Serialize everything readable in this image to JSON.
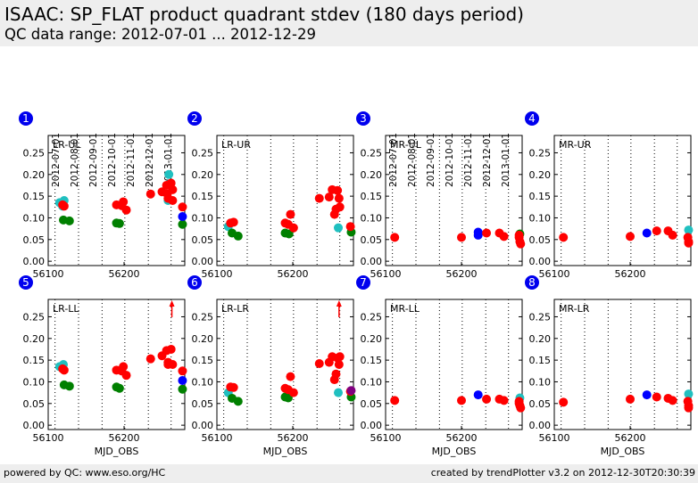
{
  "header": {
    "title": "ISAAC: SP_FLAT product quadrant stdev (180 days period)",
    "subtitle": "QC data range: 2012-07-01 ... 2012-12-29"
  },
  "footer": {
    "left": "powered by QC: www.eso.org/HC",
    "right": "created by trendPlotter v3.2 on 2012-12-30T20:30:39"
  },
  "date_axis": {
    "labels": [
      "2012-07-01",
      "2012-08-01",
      "2012-09-01",
      "2012-10-01",
      "2012-11-01",
      "2012-12-01",
      "2013-01-01"
    ],
    "mjd": [
      56109,
      56140,
      56171,
      56201,
      56232,
      56262,
      56293
    ],
    "shown_above_panels": [
      1,
      3
    ]
  },
  "colors": {
    "red": "#ff0000",
    "green": "#008000",
    "cyan": "#20c0c0",
    "blue": "#0000ff",
    "purple": "#800080",
    "badge": "#0000ee"
  },
  "chart_data": [
    {
      "type": "scatter",
      "panel": "1",
      "name": "LR-UL",
      "xlim": [
        56100,
        56280
      ],
      "ylim": [
        -0.01,
        0.29
      ],
      "xticks": [
        56100,
        56200
      ],
      "xlabel": "",
      "yticks": [
        0.0,
        0.05,
        0.1,
        0.15,
        0.2,
        0.25
      ],
      "ytick_labels": [
        "0.00",
        "0.05",
        "0.10",
        "0.15",
        "0.20",
        "0.25"
      ],
      "series": [
        {
          "color": "cyan",
          "x": [
            56115,
            56121,
            56119,
            56259,
            56258
          ],
          "y": [
            0.135,
            0.14,
            0.127,
            0.2,
            0.14
          ]
        },
        {
          "color": "green",
          "x": [
            56120,
            56128,
            56190,
            56194,
            56277
          ],
          "y": [
            0.095,
            0.093,
            0.088,
            0.087,
            0.085
          ]
        },
        {
          "color": "red",
          "x": [
            56119,
            56121,
            56190,
            56197,
            56199,
            56203,
            56235,
            56250,
            56256,
            56257,
            56262,
            56258,
            56264,
            56264,
            56277
          ],
          "y": [
            0.13,
            0.127,
            0.13,
            0.128,
            0.137,
            0.118,
            0.155,
            0.16,
            0.175,
            0.155,
            0.18,
            0.145,
            0.14,
            0.165,
            0.125
          ]
        },
        {
          "color": "blue",
          "x": [
            56277
          ],
          "y": [
            0.103
          ]
        }
      ]
    },
    {
      "type": "scatter",
      "panel": "2",
      "name": "LR-UR",
      "xlim": [
        56100,
        56280
      ],
      "ylim": [
        -0.01,
        0.29
      ],
      "xticks": [
        56100,
        56200
      ],
      "xlabel": "",
      "yticks": [
        0.0,
        0.05,
        0.1,
        0.15,
        0.2,
        0.25
      ],
      "ytick_labels": [
        "0.00",
        "0.05",
        "0.10",
        "0.15",
        "0.20",
        "0.25"
      ],
      "series": [
        {
          "color": "cyan",
          "x": [
            56115,
            56260
          ],
          "y": [
            0.08,
            0.077
          ]
        },
        {
          "color": "green",
          "x": [
            56120,
            56128,
            56190,
            56195,
            56277
          ],
          "y": [
            0.065,
            0.058,
            0.065,
            0.063,
            0.067
          ]
        },
        {
          "color": "red",
          "x": [
            56118,
            56122,
            56190,
            56194,
            56197,
            56201,
            56235,
            56248,
            56252,
            56255,
            56257,
            56259,
            56262,
            56261,
            56276
          ],
          "y": [
            0.088,
            0.09,
            0.088,
            0.085,
            0.108,
            0.077,
            0.145,
            0.148,
            0.165,
            0.108,
            0.12,
            0.163,
            0.125,
            0.145,
            0.08
          ]
        }
      ]
    },
    {
      "type": "scatter",
      "panel": "3",
      "name": "MR-UL",
      "xlim": [
        56100,
        56280
      ],
      "ylim": [
        -0.01,
        0.29
      ],
      "xticks": [
        56100,
        56200
      ],
      "xlabel": "",
      "yticks": [
        0.0,
        0.05,
        0.1,
        0.15,
        0.2,
        0.25
      ],
      "ytick_labels": [
        "0.00",
        "0.05",
        "0.10",
        "0.15",
        "0.20",
        "0.25"
      ],
      "series": [
        {
          "color": "green",
          "x": [
            56277
          ],
          "y": [
            0.063
          ]
        },
        {
          "color": "blue",
          "x": [
            56222,
            56222
          ],
          "y": [
            0.067,
            0.06
          ]
        },
        {
          "color": "red",
          "x": [
            56112,
            56200,
            56233,
            56250,
            56256,
            56276,
            56277,
            56278,
            56276
          ],
          "y": [
            0.055,
            0.055,
            0.065,
            0.065,
            0.057,
            0.055,
            0.045,
            0.04,
            0.06
          ]
        }
      ]
    },
    {
      "type": "scatter",
      "panel": "4",
      "name": "MR-UR",
      "xlim": [
        56100,
        56280
      ],
      "ylim": [
        -0.01,
        0.29
      ],
      "xticks": [
        56100,
        56200
      ],
      "xlabel": "",
      "yticks": [
        0.0,
        0.05,
        0.1,
        0.15,
        0.2,
        0.25
      ],
      "ytick_labels": [
        "0.00",
        "0.05",
        "0.10",
        "0.15",
        "0.20",
        "0.25"
      ],
      "series": [
        {
          "color": "cyan",
          "x": [
            56277
          ],
          "y": [
            0.072
          ]
        },
        {
          "color": "blue",
          "x": [
            56222
          ],
          "y": [
            0.065
          ]
        },
        {
          "color": "red",
          "x": [
            56112,
            56200,
            56235,
            56250,
            56256,
            56276,
            56277,
            56277
          ],
          "y": [
            0.055,
            0.057,
            0.07,
            0.07,
            0.06,
            0.055,
            0.045,
            0.042
          ]
        }
      ]
    },
    {
      "type": "scatter",
      "panel": "5",
      "name": "LR-LL",
      "xlim": [
        56100,
        56280
      ],
      "ylim": [
        -0.01,
        0.29
      ],
      "xticks": [
        56100,
        56200
      ],
      "xlabel": "MJD_OBS",
      "yticks": [
        0.0,
        0.05,
        0.1,
        0.15,
        0.2,
        0.25
      ],
      "ytick_labels": [
        "0.00",
        "0.05",
        "0.10",
        "0.15",
        "0.20",
        "0.25"
      ],
      "arrow_x": 56263,
      "series": [
        {
          "color": "cyan",
          "x": [
            56115,
            56120
          ],
          "y": [
            0.135,
            0.14
          ]
        },
        {
          "color": "green",
          "x": [
            56121,
            56128,
            56190,
            56194,
            56277
          ],
          "y": [
            0.093,
            0.09,
            0.088,
            0.085,
            0.083
          ]
        },
        {
          "color": "red",
          "x": [
            56119,
            56121,
            56190,
            56197,
            56199,
            56203,
            56235,
            56250,
            56256,
            56258,
            56262,
            56258,
            56264,
            56277
          ],
          "y": [
            0.13,
            0.127,
            0.127,
            0.125,
            0.135,
            0.115,
            0.153,
            0.16,
            0.172,
            0.14,
            0.175,
            0.145,
            0.14,
            0.125
          ]
        },
        {
          "color": "blue",
          "x": [
            56277
          ],
          "y": [
            0.103
          ]
        }
      ]
    },
    {
      "type": "scatter",
      "panel": "6",
      "name": "LR-LR",
      "xlim": [
        56100,
        56280
      ],
      "ylim": [
        -0.01,
        0.29
      ],
      "xticks": [
        56100,
        56200
      ],
      "xlabel": "MJD_OBS",
      "yticks": [
        0.0,
        0.05,
        0.1,
        0.15,
        0.2,
        0.25
      ],
      "ytick_labels": [
        "0.00",
        "0.05",
        "0.10",
        "0.15",
        "0.20",
        "0.25"
      ],
      "arrow_x": 56261,
      "series": [
        {
          "color": "cyan",
          "x": [
            56115,
            56260
          ],
          "y": [
            0.075,
            0.075
          ]
        },
        {
          "color": "green",
          "x": [
            56120,
            56128,
            56190,
            56194,
            56277
          ],
          "y": [
            0.062,
            0.055,
            0.065,
            0.063,
            0.065
          ]
        },
        {
          "color": "red",
          "x": [
            56118,
            56122,
            56190,
            56194,
            56197,
            56201,
            56235,
            56248,
            56252,
            56255,
            56257,
            56259,
            56262,
            56261,
            56276
          ],
          "y": [
            0.088,
            0.087,
            0.085,
            0.082,
            0.112,
            0.075,
            0.142,
            0.145,
            0.158,
            0.105,
            0.118,
            0.155,
            0.158,
            0.14,
            0.078
          ]
        },
        {
          "color": "purple",
          "x": [
            56277
          ],
          "y": [
            0.08
          ]
        }
      ]
    },
    {
      "type": "scatter",
      "panel": "7",
      "name": "MR-LL",
      "xlim": [
        56100,
        56280
      ],
      "ylim": [
        -0.01,
        0.29
      ],
      "xticks": [
        56100,
        56200
      ],
      "xlabel": "MJD_OBS",
      "yticks": [
        0.0,
        0.05,
        0.1,
        0.15,
        0.2,
        0.25
      ],
      "ytick_labels": [
        "0.00",
        "0.05",
        "0.10",
        "0.15",
        "0.20",
        "0.25"
      ],
      "series": [
        {
          "color": "cyan",
          "x": [
            56277
          ],
          "y": [
            0.063
          ]
        },
        {
          "color": "blue",
          "x": [
            56222
          ],
          "y": [
            0.07
          ]
        },
        {
          "color": "red",
          "x": [
            56112,
            56200,
            56233,
            56250,
            56256,
            56276,
            56277,
            56278,
            56276
          ],
          "y": [
            0.057,
            0.057,
            0.06,
            0.06,
            0.057,
            0.055,
            0.045,
            0.04,
            0.05
          ]
        }
      ]
    },
    {
      "type": "scatter",
      "panel": "8",
      "name": "MR-LR",
      "xlim": [
        56100,
        56280
      ],
      "ylim": [
        -0.01,
        0.29
      ],
      "xticks": [
        56100,
        56200
      ],
      "xlabel": "MJD_OBS",
      "yticks": [
        0.0,
        0.05,
        0.1,
        0.15,
        0.2,
        0.25
      ],
      "ytick_labels": [
        "0.00",
        "0.05",
        "0.10",
        "0.15",
        "0.20",
        "0.25"
      ],
      "series": [
        {
          "color": "cyan",
          "x": [
            56277
          ],
          "y": [
            0.072
          ]
        },
        {
          "color": "blue",
          "x": [
            56222
          ],
          "y": [
            0.07
          ]
        },
        {
          "color": "red",
          "x": [
            56112,
            56200,
            56235,
            56250,
            56256,
            56276,
            56277,
            56277
          ],
          "y": [
            0.053,
            0.06,
            0.065,
            0.062,
            0.057,
            0.055,
            0.045,
            0.04
          ]
        }
      ]
    }
  ]
}
